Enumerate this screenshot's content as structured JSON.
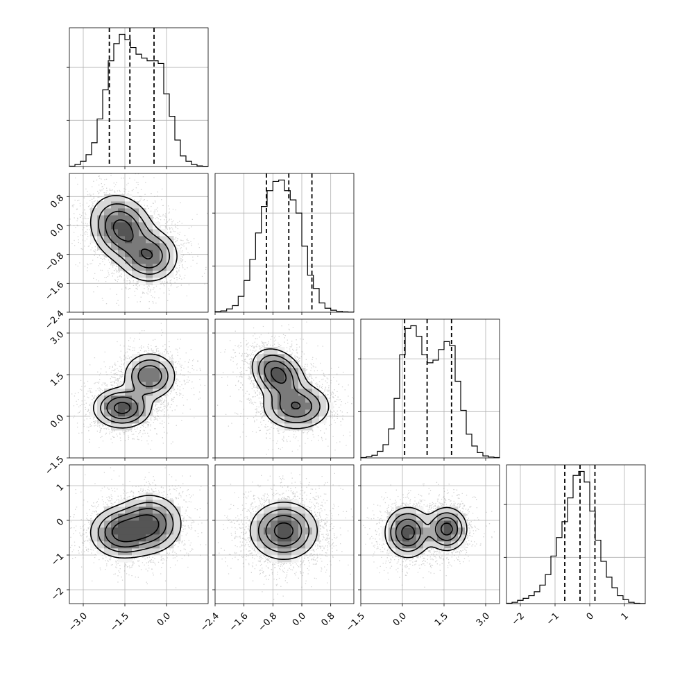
{
  "chart_data": {
    "type": "corner",
    "title": "",
    "parameters": [
      "",
      "",
      "",
      ""
    ],
    "histogram_quantiles": [
      [
        -2.06,
        -1.32,
        -0.45
      ],
      [
        -0.98,
        -0.36,
        0.28
      ],
      [
        0.08,
        0.89,
        1.77
      ],
      [
        -0.72,
        -0.28,
        0.15
      ]
    ],
    "axis_ranges": [
      [
        -3.5,
        1.5
      ],
      [
        -2.4,
        1.44
      ],
      [
        -1.5,
        3.5
      ],
      [
        -2.4,
        1.6
      ]
    ],
    "ticks": {
      "x": [
        [
          -3.0,
          -1.5,
          0.0
        ],
        [
          -2.4,
          -1.6,
          -0.8,
          0.0,
          0.8
        ],
        [
          -1.5,
          0.0,
          1.5,
          3.0
        ],
        [
          -2,
          -1,
          0,
          1
        ]
      ],
      "y": [
        null,
        [
          0.8,
          0.0,
          -0.8,
          -1.6,
          -2.4
        ],
        [
          3.0,
          1.5,
          0.0,
          -1.5
        ],
        [
          1,
          0,
          -1,
          -2
        ]
      ]
    },
    "tick_labels": {
      "x": [
        [
          "−3.0",
          "−1.5",
          "0.0"
        ],
        [
          "−2.4",
          "−1.6",
          "−0.8",
          "0.0",
          "0.8"
        ],
        [
          "−1.5",
          "0.0",
          "1.5",
          "3.0"
        ],
        [
          "−2",
          "−1",
          "0",
          "1"
        ]
      ],
      "y": [
        null,
        [
          "0.8",
          "0.0",
          "−0.8",
          "−1.6",
          "−2.4"
        ],
        [
          "3.0",
          "1.5",
          "0.0",
          "−1.5"
        ],
        [
          "1",
          "0",
          "−1",
          "−2"
        ]
      ]
    },
    "histograms": [
      {
        "bins": [
          -3.5,
          -3.3,
          -3.1,
          -2.9,
          -2.7,
          -2.5,
          -2.3,
          -2.1,
          -1.9,
          -1.7,
          -1.5,
          -1.3,
          -1.1,
          -0.9,
          -0.7,
          -0.5,
          -0.3,
          -0.1,
          0.1,
          0.3,
          0.5,
          0.7,
          0.9,
          1.1,
          1.3,
          1.5
        ],
        "counts": [
          0.3,
          1.5,
          4,
          9,
          18,
          36,
          58,
          80,
          93,
          100,
          96,
          90,
          85,
          82,
          80,
          80,
          78,
          55,
          38,
          20,
          8,
          4,
          1.5,
          0.5,
          0.2
        ]
      },
      {
        "bins": [
          -2.4,
          -2.24,
          -2.08,
          -1.92,
          -1.76,
          -1.6,
          -1.44,
          -1.28,
          -1.12,
          -0.96,
          -0.8,
          -0.64,
          -0.48,
          -0.32,
          -0.16,
          0.0,
          0.16,
          0.32,
          0.48,
          0.64,
          0.8,
          0.96,
          1.12,
          1.28,
          1.44
        ],
        "counts": [
          0.5,
          1,
          2.5,
          5,
          12,
          24,
          40,
          60,
          80,
          92,
          99,
          100,
          92,
          85,
          75,
          50,
          28,
          18,
          7,
          3,
          1.5,
          0.7,
          0.3,
          0.1
        ]
      },
      {
        "bins": [
          -1.5,
          -1.3,
          -1.1,
          -0.9,
          -0.7,
          -0.5,
          -0.3,
          -0.1,
          0.1,
          0.3,
          0.5,
          0.7,
          0.9,
          1.1,
          1.3,
          1.5,
          1.7,
          1.9,
          2.1,
          2.3,
          2.5,
          2.7,
          2.9,
          3.1,
          3.3,
          3.5
        ],
        "counts": [
          0.3,
          1,
          2,
          5,
          10,
          22,
          45,
          78,
          98,
          100,
          92,
          78,
          72,
          74,
          82,
          88,
          85,
          58,
          36,
          18,
          9,
          4,
          1.5,
          0.7,
          0.3
        ]
      },
      {
        "bins": [
          -2.4,
          -2.24,
          -2.08,
          -1.92,
          -1.76,
          -1.6,
          -1.44,
          -1.28,
          -1.12,
          -0.96,
          -0.8,
          -0.64,
          -0.48,
          -0.32,
          -0.16,
          0.0,
          0.16,
          0.32,
          0.48,
          0.64,
          0.8,
          0.96,
          1.12,
          1.28,
          1.44,
          1.6
        ],
        "counts": [
          0.3,
          1,
          2.5,
          4,
          6,
          9,
          14,
          22,
          36,
          50,
          62,
          80,
          97,
          100,
          92,
          70,
          48,
          32,
          20,
          12,
          6,
          3,
          1,
          0.3,
          0.1
        ]
      }
    ],
    "joint_components": [
      {
        "row": 1,
        "col": 0,
        "components": [
          {
            "cx": -1.6,
            "cy": -0.1,
            "sx": 0.55,
            "sy": 0.45,
            "rho": -0.2,
            "w": 1.0
          },
          {
            "cx": -0.6,
            "cy": -0.85,
            "sx": 0.5,
            "sy": 0.35,
            "rho": 0.0,
            "w": 0.8
          }
        ]
      },
      {
        "row": 2,
        "col": 0,
        "components": [
          {
            "cx": -1.6,
            "cy": 0.3,
            "sx": 0.5,
            "sy": 0.35,
            "rho": 0.0,
            "w": 1.0
          },
          {
            "cx": -0.6,
            "cy": 1.45,
            "sx": 0.45,
            "sy": 0.4,
            "rho": 0.0,
            "w": 0.85
          }
        ]
      },
      {
        "row": 2,
        "col": 1,
        "components": [
          {
            "cx": -0.65,
            "cy": 1.5,
            "sx": 0.35,
            "sy": 0.45,
            "rho": -0.3,
            "w": 1.0
          },
          {
            "cx": -0.15,
            "cy": 0.35,
            "sx": 0.45,
            "sy": 0.4,
            "rho": 0.0,
            "w": 0.85
          }
        ]
      },
      {
        "row": 3,
        "col": 0,
        "components": [
          {
            "cx": -1.6,
            "cy": -0.35,
            "sx": 0.55,
            "sy": 0.35,
            "rho": 0.0,
            "w": 1.0
          },
          {
            "cx": -0.6,
            "cy": -0.1,
            "sx": 0.55,
            "sy": 0.4,
            "rho": 0.0,
            "w": 0.95
          }
        ]
      },
      {
        "row": 3,
        "col": 1,
        "components": [
          {
            "cx": -0.5,
            "cy": -0.3,
            "sx": 0.45,
            "sy": 0.4,
            "rho": 0.0,
            "w": 1.0
          }
        ]
      },
      {
        "row": 3,
        "col": 2,
        "components": [
          {
            "cx": 0.2,
            "cy": -0.35,
            "sx": 0.4,
            "sy": 0.35,
            "rho": 0.0,
            "w": 1.0
          },
          {
            "cx": 1.6,
            "cy": -0.25,
            "sx": 0.35,
            "sy": 0.3,
            "rho": 0.0,
            "w": 1.0
          }
        ]
      }
    ],
    "contour_levels": [
      0.12,
      0.3,
      0.55,
      0.85
    ],
    "grid": true,
    "quantile_line_style": "dashed",
    "contour_color": "#000000",
    "point_color": "#808080"
  }
}
